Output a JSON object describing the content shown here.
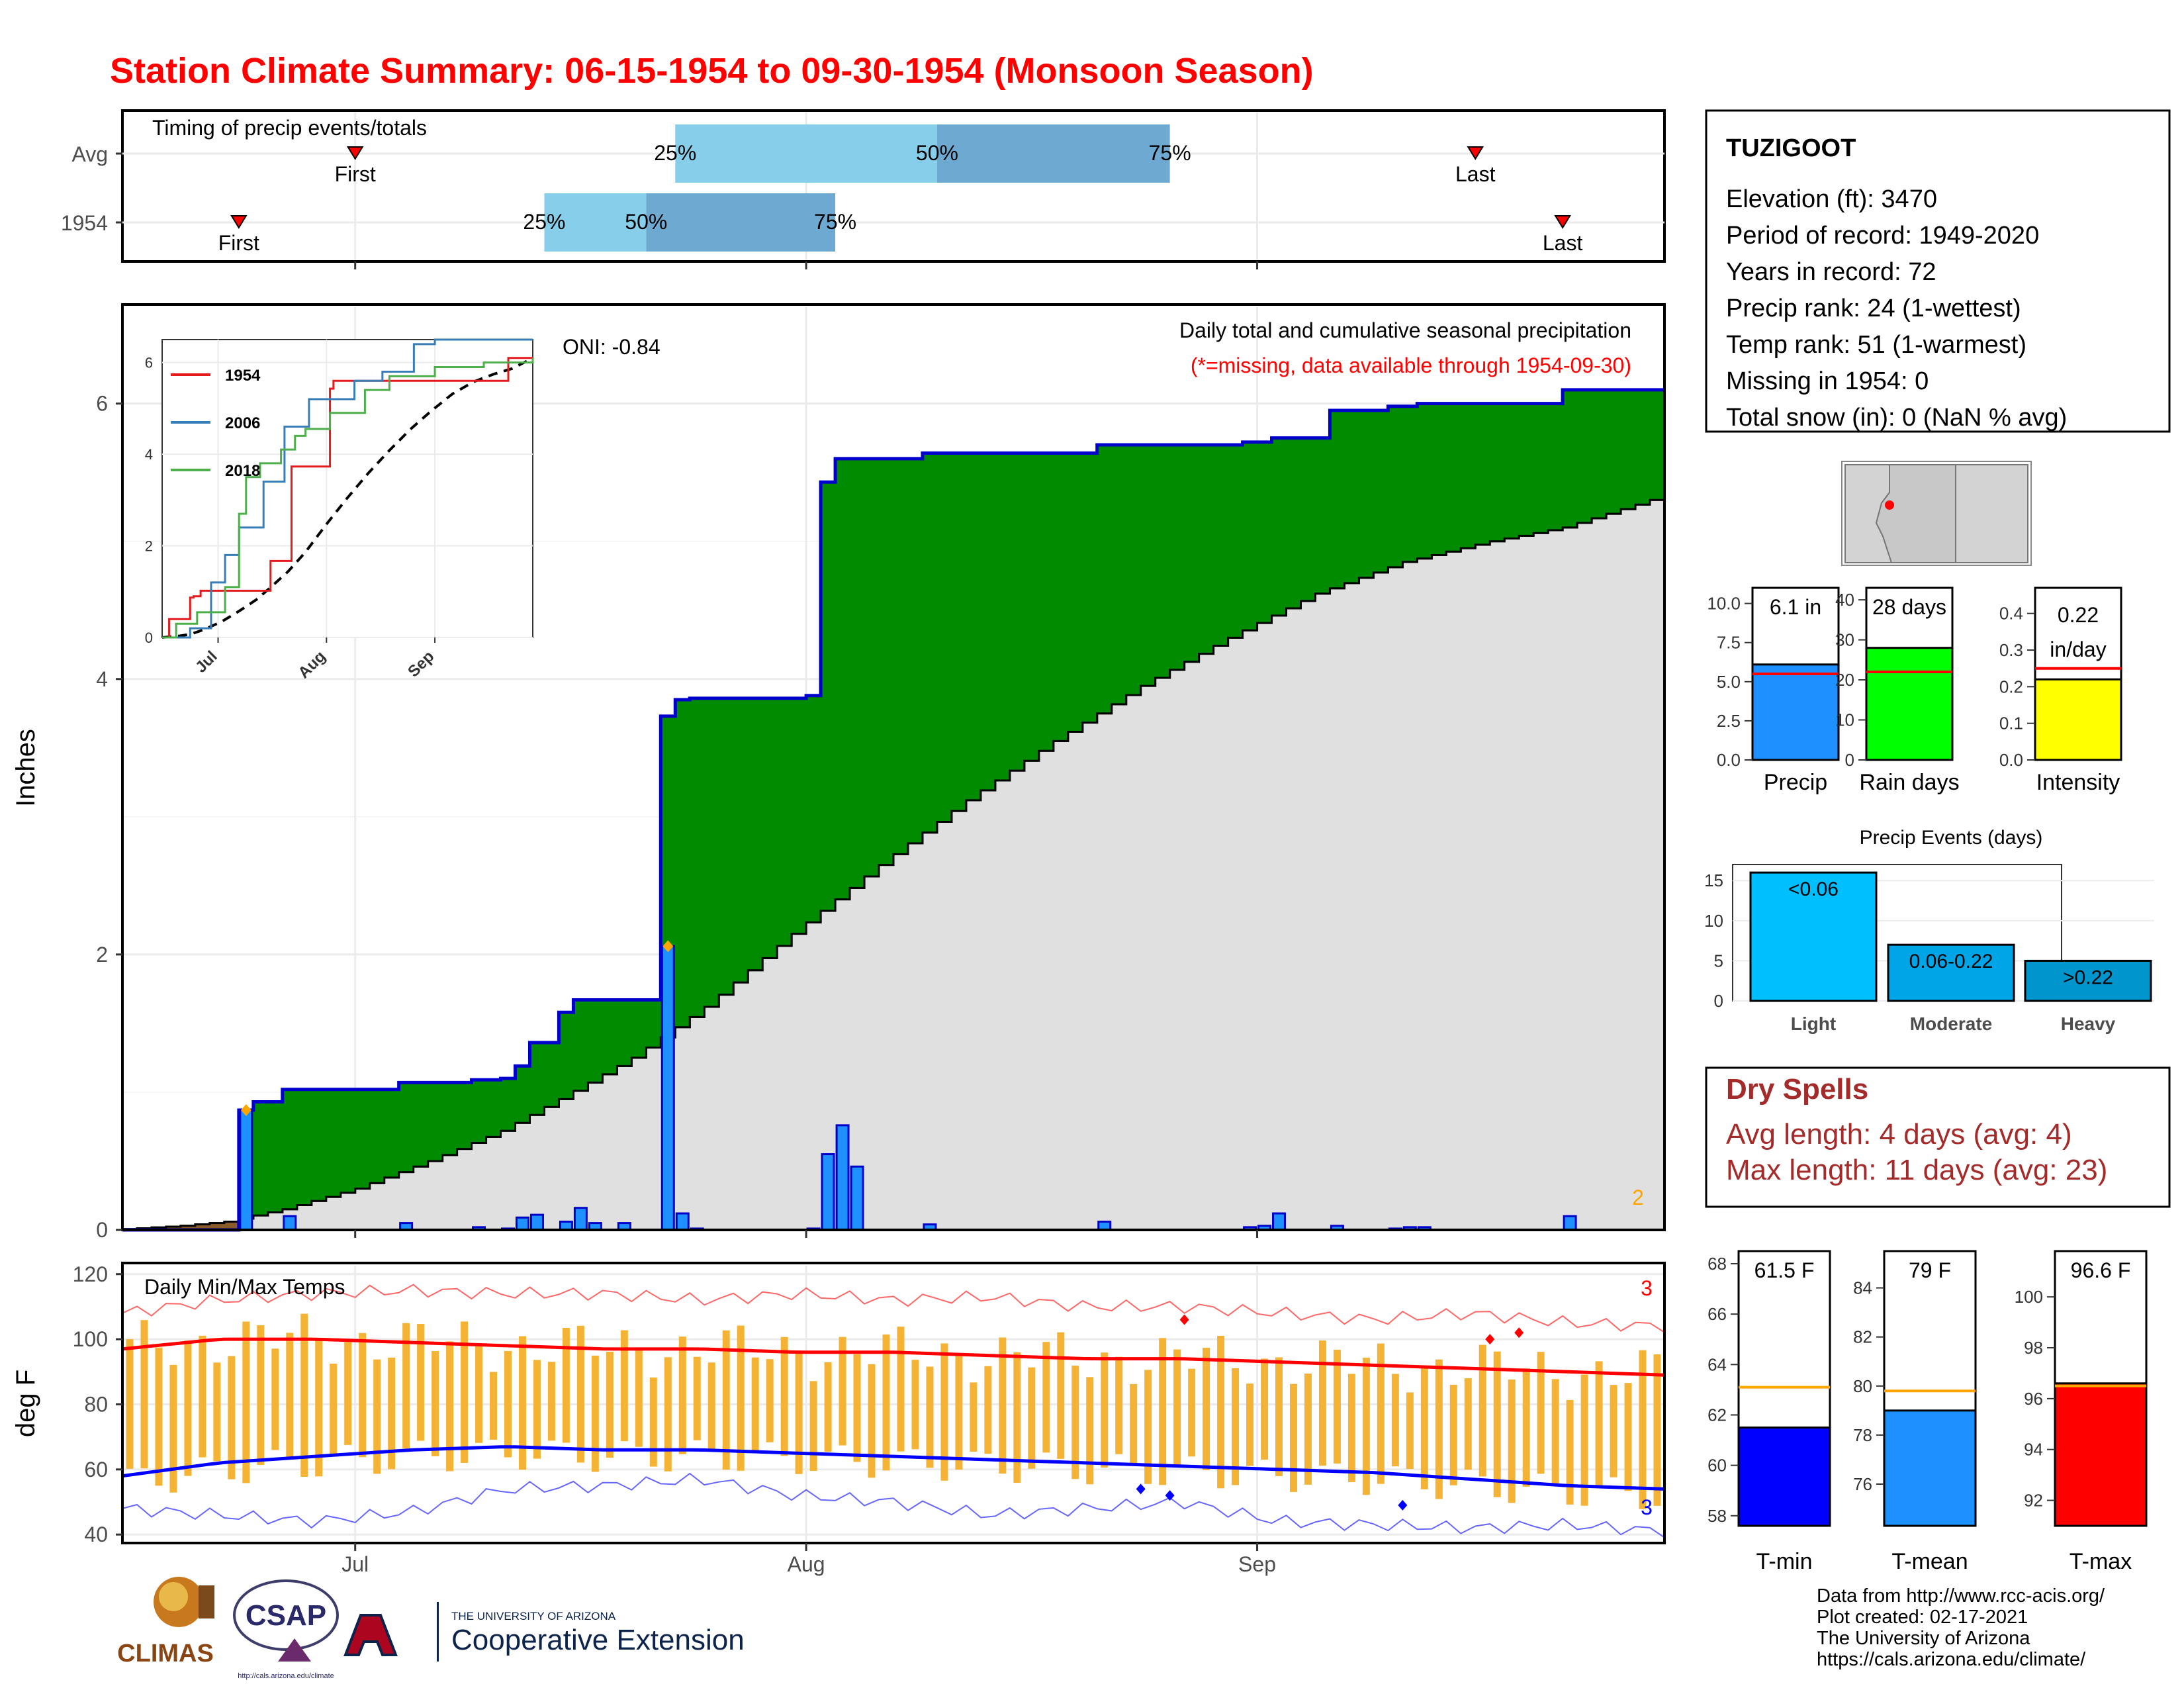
{
  "title": "Station Climate Summary: 06-15-1954 to 09-30-1954 (Monsoon Season)",
  "colors": {
    "title_red": "#ff0000",
    "green": "#008b00",
    "blue_bar": "#1e90ff",
    "normal_fill": "#e0e0e0",
    "tmin": "#0000ff",
    "tmax": "#ff0000",
    "temp_bar": "#f5b335",
    "dry_text": "#a52a2a",
    "q1": "#87ceeb",
    "q2": "#6ea9d2"
  },
  "timing": {
    "label": "Timing of precip events/totals",
    "rows": [
      {
        "name": "Avg",
        "first_day": 16,
        "last_day": 93,
        "q25": 38,
        "q50": 56,
        "q75": 72,
        "first_label": "First",
        "last_label": "Last",
        "p25": "25%",
        "p50": "50%",
        "p75": "75%"
      },
      {
        "name": "1954",
        "first_day": 8,
        "last_day": 99,
        "q25": 29,
        "q50": 36,
        "q75": 49,
        "first_label": "First",
        "last_label": "Last",
        "p25": "25%",
        "p50": "50%",
        "p75": "75%"
      }
    ]
  },
  "station": {
    "name": "TUZIGOOT",
    "lines": [
      "Elevation (ft): 3470",
      "Period of record: 1949-2020",
      "Years in record: 72",
      "Precip rank: 24 (1-wettest)",
      "Temp rank: 51 (1-warmest)",
      "Missing in 1954: 0",
      "Total snow (in): 0 (NaN % avg)"
    ]
  },
  "precip_panel": {
    "ylabel": "Inches",
    "oni": "ONI: -0.84",
    "subtitle": "Daily total and cumulative seasonal precipitation",
    "missing_note": "(*=missing, data available through 1954-09-30)",
    "corner_count": "2",
    "yticks": [
      "0",
      "2",
      "4",
      "6"
    ]
  },
  "x_axis": {
    "ticks": [
      {
        "label": "Jul",
        "day": 16
      },
      {
        "label": "Aug",
        "day": 47
      },
      {
        "label": "Sep",
        "day": 78
      }
    ]
  },
  "inset": {
    "legend": [
      {
        "name": "1954",
        "color": "#e41a1c"
      },
      {
        "name": "2006",
        "color": "#377eb8"
      },
      {
        "name": "2018",
        "color": "#4daf4a"
      }
    ],
    "yticks": [
      "0",
      "2",
      "4",
      "6"
    ],
    "xticks": [
      "Jul",
      "Aug",
      "Sep"
    ]
  },
  "mini_bars": [
    {
      "label": "Precip",
      "value_text": "6.1 in",
      "value": 6.1,
      "avg": 5.5,
      "ymax": 11,
      "ticks": [
        "0.0",
        "2.5",
        "5.0",
        "7.5",
        "10.0"
      ],
      "tick_vals": [
        0,
        2.5,
        5,
        7.5,
        10
      ],
      "color": "#1e90ff"
    },
    {
      "label": "Rain days",
      "value_text": "28 days",
      "value": 28,
      "avg": 22,
      "ymax": 43,
      "ticks": [
        "0",
        "10",
        "20",
        "30",
        "40"
      ],
      "tick_vals": [
        0,
        10,
        20,
        30,
        40
      ],
      "color": "#00ff00"
    },
    {
      "label": "Intensity",
      "value_text": "0.22",
      "value_text2": "in/day",
      "value": 0.22,
      "avg": 0.25,
      "ymax": 0.47,
      "ticks": [
        "0.0",
        "0.1",
        "0.2",
        "0.3",
        "0.4"
      ],
      "tick_vals": [
        0,
        0.1,
        0.2,
        0.3,
        0.4
      ],
      "color": "#ffff00"
    }
  ],
  "events": {
    "title": "Precip Events (days)",
    "bars": [
      {
        "cat": "Light",
        "label": "<0.06",
        "value": 16,
        "color": "#00bfff"
      },
      {
        "cat": "Moderate",
        "label": "0.06-0.22",
        "value": 7,
        "color": "#00a5e8"
      },
      {
        "cat": "Heavy",
        "label": ">0.22",
        "value": 5,
        "color": "#0095cc"
      }
    ],
    "ticks": [
      "0",
      "5",
      "10",
      "15"
    ]
  },
  "dry_spells": {
    "title": "Dry Spells",
    "avg": "Avg length: 4 days (avg: 4)",
    "max": "Max length: 11 days (avg: 23)"
  },
  "temp_panel": {
    "label": "Daily Min/Max Temps",
    "ylabel": "deg F",
    "yticks": [
      "40",
      "60",
      "80",
      "100",
      "120"
    ],
    "count_hot": "3",
    "count_cold": "3"
  },
  "temp_bars": [
    {
      "label": "T-min",
      "value_text": "61.5 F",
      "value": 61.5,
      "avg": 63.1,
      "ymin": 57.6,
      "ymax": 68.5,
      "ticks": [
        "58",
        "60",
        "62",
        "64",
        "66",
        "68"
      ],
      "tick_vals": [
        58,
        60,
        62,
        64,
        66,
        68
      ],
      "color": "#0000ff"
    },
    {
      "label": "T-mean",
      "value_text": "79 F",
      "value": 79,
      "avg": 79.8,
      "ymin": 74.3,
      "ymax": 85.5,
      "ticks": [
        "76",
        "78",
        "80",
        "82",
        "84"
      ],
      "tick_vals": [
        76,
        78,
        80,
        82,
        84
      ],
      "color": "#1e90ff"
    },
    {
      "label": "T-max",
      "value_text": "96.6 F",
      "value": 96.6,
      "avg": 96.5,
      "ymin": 91.0,
      "ymax": 101.8,
      "ticks": [
        "92",
        "94",
        "96",
        "98",
        "100"
      ],
      "tick_vals": [
        92,
        94,
        96,
        98,
        100
      ],
      "color": "#ff0000"
    }
  ],
  "footer": {
    "lines": [
      "Data from http://www.rcc-acis.org/",
      "Plot created: 02-17-2021",
      "The University of Arizona",
      "https://cals.arizona.edu/climate/"
    ]
  },
  "logos": {
    "climas": "CLIMAS",
    "csap": "CSAP",
    "csap_url": "http://cals.arizona.edu/climate",
    "ua_top": "THE UNIVERSITY OF ARIZONA",
    "ua_main": "Cooperative Extension"
  },
  "chart_data": {
    "type": "bar",
    "title": "Daily total and cumulative seasonal precipitation",
    "ylabel": "Inches",
    "ylim": [
      0,
      6.7
    ],
    "x_start": "1954-06-15",
    "x_end": "1954-09-30",
    "daily_precip_days": [
      8,
      11,
      19,
      24,
      26,
      27,
      28,
      30,
      31,
      32,
      34,
      37,
      38,
      39,
      47,
      48,
      49,
      50,
      55,
      67,
      77,
      78,
      79,
      83,
      87,
      88,
      89,
      99
    ],
    "daily_precip_in": [
      0.87,
      0.1,
      0.05,
      0.02,
      0.01,
      0.09,
      0.11,
      0.06,
      0.16,
      0.05,
      0.05,
      2.06,
      0.12,
      0.01,
      0.01,
      0.55,
      0.76,
      0.46,
      0.04,
      0.06,
      0.02,
      0.03,
      0.12,
      0.03,
      0.01,
      0.02,
      0.02,
      0.1
    ],
    "cumulative_1954": [
      {
        "day": 0,
        "v": 0.0
      },
      {
        "day": 8,
        "v": 0.87
      },
      {
        "day": 9,
        "v": 0.93
      },
      {
        "day": 11,
        "v": 1.02
      },
      {
        "day": 19,
        "v": 1.07
      },
      {
        "day": 24,
        "v": 1.09
      },
      {
        "day": 26,
        "v": 1.1
      },
      {
        "day": 27,
        "v": 1.19
      },
      {
        "day": 28,
        "v": 1.36
      },
      {
        "day": 30,
        "v": 1.58
      },
      {
        "day": 31,
        "v": 1.67
      },
      {
        "day": 37,
        "v": 3.73
      },
      {
        "day": 38,
        "v": 3.85
      },
      {
        "day": 39,
        "v": 3.86
      },
      {
        "day": 47,
        "v": 3.88
      },
      {
        "day": 48,
        "v": 5.43
      },
      {
        "day": 49,
        "v": 5.6
      },
      {
        "day": 55,
        "v": 5.64
      },
      {
        "day": 67,
        "v": 5.7
      },
      {
        "day": 77,
        "v": 5.72
      },
      {
        "day": 79,
        "v": 5.75
      },
      {
        "day": 83,
        "v": 5.95
      },
      {
        "day": 87,
        "v": 5.98
      },
      {
        "day": 89,
        "v": 6.0
      },
      {
        "day": 99,
        "v": 6.1
      },
      {
        "day": 106,
        "v": 6.1
      }
    ],
    "normal_cumulative": [
      {
        "day": 0,
        "v": 0.0
      },
      {
        "day": 5,
        "v": 0.03
      },
      {
        "day": 8,
        "v": 0.06
      },
      {
        "day": 12,
        "v": 0.15
      },
      {
        "day": 17,
        "v": 0.3
      },
      {
        "day": 22,
        "v": 0.5
      },
      {
        "day": 27,
        "v": 0.72
      },
      {
        "day": 31,
        "v": 0.95
      },
      {
        "day": 36,
        "v": 1.25
      },
      {
        "day": 41,
        "v": 1.62
      },
      {
        "day": 47,
        "v": 2.15
      },
      {
        "day": 53,
        "v": 2.65
      },
      {
        "day": 59,
        "v": 3.12
      },
      {
        "day": 65,
        "v": 3.55
      },
      {
        "day": 71,
        "v": 3.95
      },
      {
        "day": 77,
        "v": 4.3
      },
      {
        "day": 83,
        "v": 4.62
      },
      {
        "day": 89,
        "v": 4.85
      },
      {
        "day": 95,
        "v": 5.0
      },
      {
        "day": 100,
        "v": 5.1
      },
      {
        "day": 106,
        "v": 5.3
      }
    ],
    "inset_series": [
      {
        "name": "1954",
        "points": [
          [
            0,
            0
          ],
          [
            2,
            0.4
          ],
          [
            8,
            0.87
          ],
          [
            9,
            0.9
          ],
          [
            11,
            1.02
          ],
          [
            31,
            1.67
          ],
          [
            37,
            3.73
          ],
          [
            48,
            5.43
          ],
          [
            49,
            5.6
          ],
          [
            99,
            6.1
          ],
          [
            106,
            6.1
          ]
        ]
      },
      {
        "name": "2006",
        "points": [
          [
            0,
            0
          ],
          [
            8,
            0.2
          ],
          [
            14,
            1.2
          ],
          [
            18,
            1.8
          ],
          [
            22,
            2.4
          ],
          [
            29,
            3.4
          ],
          [
            35,
            4.6
          ],
          [
            42,
            5.2
          ],
          [
            55,
            5.6
          ],
          [
            63,
            5.8
          ],
          [
            72,
            6.4
          ],
          [
            78,
            6.5
          ],
          [
            106,
            6.5
          ]
        ]
      },
      {
        "name": "2018",
        "points": [
          [
            0,
            0
          ],
          [
            4,
            0.3
          ],
          [
            10,
            0.55
          ],
          [
            18,
            1.1
          ],
          [
            22,
            2.7
          ],
          [
            24,
            3.5
          ],
          [
            28,
            3.8
          ],
          [
            34,
            4.1
          ],
          [
            38,
            4.4
          ],
          [
            41,
            4.55
          ],
          [
            48,
            4.9
          ],
          [
            58,
            5.4
          ],
          [
            65,
            5.7
          ],
          [
            78,
            5.9
          ],
          [
            92,
            6.0
          ],
          [
            106,
            6.1
          ]
        ]
      }
    ],
    "temp_avg_max": [
      97,
      100,
      100,
      99,
      98,
      97,
      97,
      96,
      96,
      95,
      94,
      94,
      93,
      92,
      91,
      90,
      89
    ],
    "temp_avg_min": [
      58,
      62,
      64,
      66,
      67,
      66,
      66,
      65,
      64,
      63,
      62,
      61,
      60,
      59,
      57,
      55,
      54
    ],
    "temp_record_max": [
      108,
      112,
      114,
      115,
      114,
      114,
      112,
      114,
      112,
      113,
      110,
      110,
      108,
      106,
      108,
      105,
      104
    ],
    "temp_record_min": [
      48,
      46,
      44,
      47,
      54,
      55,
      57,
      52,
      50,
      46,
      48,
      50,
      44,
      43,
      42,
      43,
      41
    ],
    "temp_ylim": [
      38,
      123
    ]
  }
}
